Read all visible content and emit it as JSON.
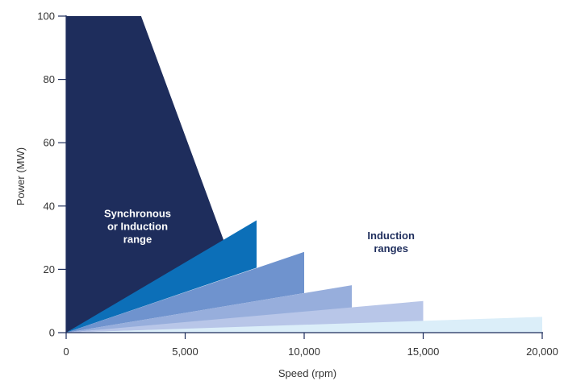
{
  "chart_data": {
    "type": "area",
    "title": "",
    "xlabel": "Speed (rpm)",
    "ylabel": "Power (MW)",
    "xlim": [
      0,
      20000
    ],
    "ylim": [
      0,
      100
    ],
    "x_ticks": [
      {
        "value": 0,
        "label": "0"
      },
      {
        "value": 5000,
        "label": "5,000"
      },
      {
        "value": 10000,
        "label": "10,000"
      },
      {
        "value": 15000,
        "label": "15,000"
      },
      {
        "value": 20000,
        "label": "20,000"
      }
    ],
    "y_ticks": [
      {
        "value": 0,
        "label": "0"
      },
      {
        "value": 20,
        "label": "20"
      },
      {
        "value": 40,
        "label": "40"
      },
      {
        "value": 60,
        "label": "60"
      },
      {
        "value": 80,
        "label": "80"
      },
      {
        "value": 100,
        "label": "100"
      }
    ],
    "grid": false,
    "legend": "none",
    "regions": [
      {
        "group": "synchronous-or-induction",
        "color": "#1e2d5c",
        "points": [
          [
            0,
            0
          ],
          [
            0,
            100
          ],
          [
            3150,
            100
          ],
          [
            6650,
            28.5
          ],
          [
            0,
            0
          ]
        ]
      },
      {
        "group": "induction",
        "color": "#0c6fb8",
        "points": [
          [
            0,
            0
          ],
          [
            8000,
            35.5
          ],
          [
            8000,
            20.5
          ],
          [
            0,
            0
          ]
        ]
      },
      {
        "group": "induction",
        "color": "#6f93ce",
        "points": [
          [
            0,
            0
          ],
          [
            10000,
            25.5
          ],
          [
            10000,
            12.5
          ],
          [
            0,
            0
          ]
        ]
      },
      {
        "group": "induction",
        "color": "#97aedc",
        "points": [
          [
            0,
            0
          ],
          [
            12000,
            15
          ],
          [
            12000,
            7.5
          ],
          [
            0,
            0
          ]
        ]
      },
      {
        "group": "induction",
        "color": "#b8c6e8",
        "points": [
          [
            0,
            0
          ],
          [
            15000,
            10
          ],
          [
            15000,
            3.5
          ],
          [
            0,
            0
          ]
        ]
      },
      {
        "group": "induction",
        "color": "#dbeef9",
        "points": [
          [
            0,
            0
          ],
          [
            20000,
            5
          ],
          [
            20000,
            0
          ],
          [
            0,
            0
          ]
        ]
      }
    ],
    "annotations": [
      {
        "id": "sync",
        "lines": [
          "Synchronous",
          "or Induction",
          "range"
        ],
        "x": 3000,
        "y": 36.5,
        "color": "#ffffff"
      },
      {
        "id": "induction",
        "lines": [
          "Induction",
          "ranges"
        ],
        "x": 13650,
        "y": 29.5,
        "color": "#1e2d5c"
      }
    ],
    "colors": {
      "axis": "#1e2d5c",
      "text": "#333333"
    }
  }
}
